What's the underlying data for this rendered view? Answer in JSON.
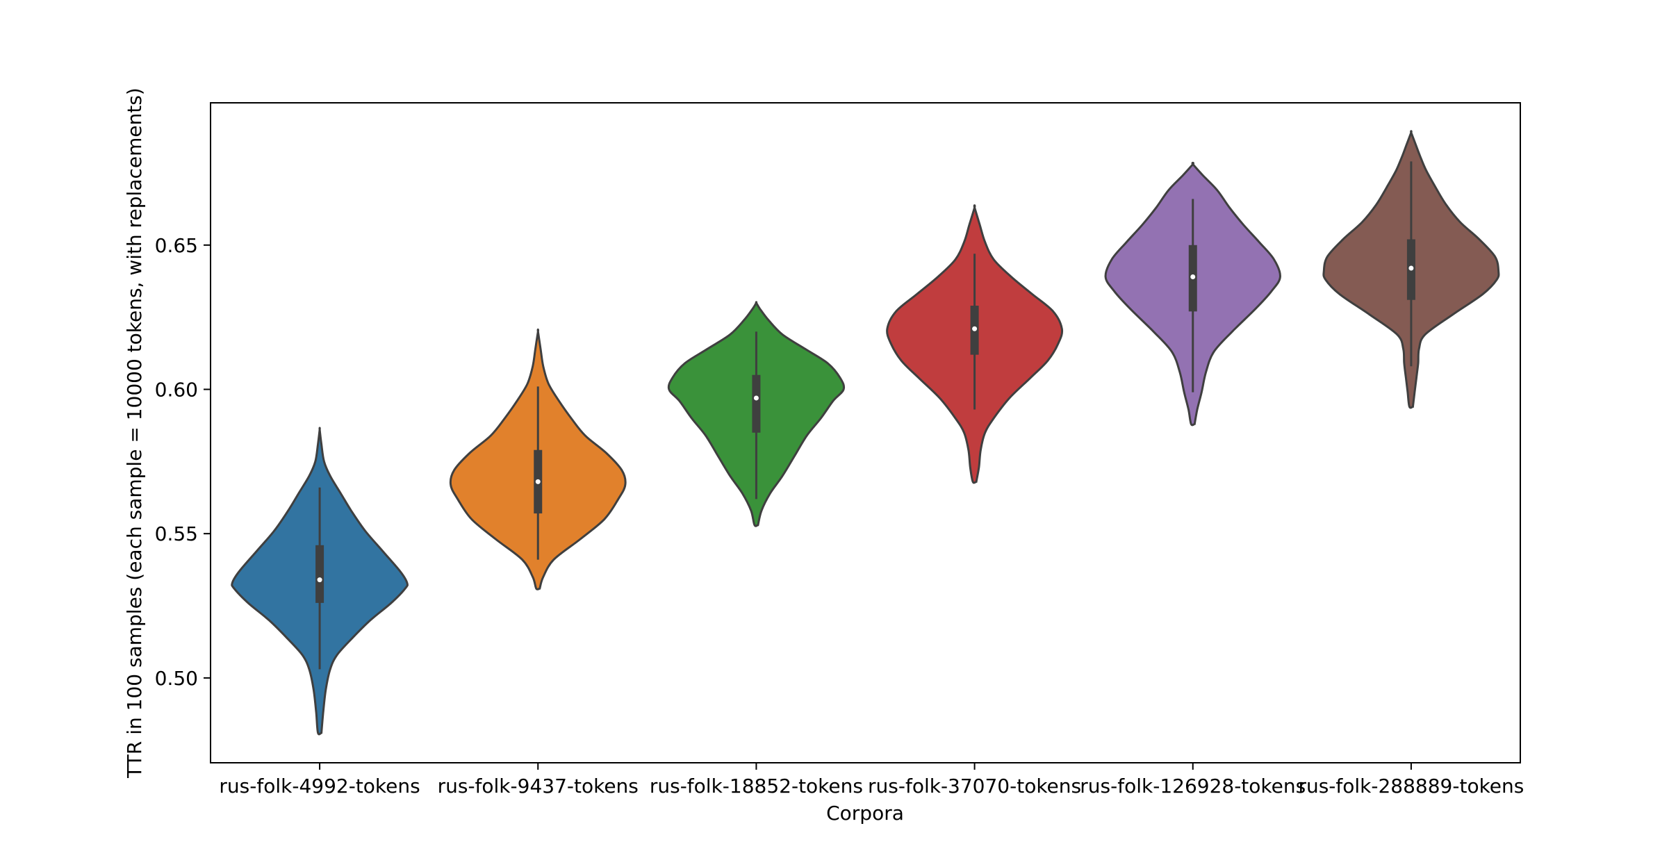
{
  "chart_data": {
    "type": "violin",
    "title": "",
    "xlabel": "Corpora",
    "ylabel": "TTR in 100 samples (each sample = 10000 tokens, with replacements)",
    "ylim": [
      0.4706,
      0.6993
    ],
    "yticks": [
      "0.50",
      "0.55",
      "0.60",
      "0.65"
    ],
    "ytick_values": [
      0.5,
      0.55,
      0.6,
      0.65
    ],
    "grid": false,
    "legend": "none",
    "categories": [
      "rus-folk-4992-tokens",
      "rus-folk-9437-tokens",
      "rus-folk-18852-tokens",
      "rus-folk-37070-tokens",
      "rus-folk-126928-tokens",
      "rus-folk-288889-tokens"
    ],
    "series": [
      {
        "category": "rus-folk-4992-tokens",
        "color": "#3274a1",
        "median": 0.534,
        "q1": 0.526,
        "q3": 0.546,
        "whisker_low": 0.503,
        "whisker_high": 0.566,
        "density": [
          [
            0.481,
            0.02
          ],
          [
            0.488,
            0.04
          ],
          [
            0.496,
            0.07
          ],
          [
            0.503,
            0.12
          ],
          [
            0.508,
            0.2
          ],
          [
            0.514,
            0.38
          ],
          [
            0.52,
            0.58
          ],
          [
            0.526,
            0.82
          ],
          [
            0.531,
            0.98
          ],
          [
            0.533,
            1.0
          ],
          [
            0.537,
            0.92
          ],
          [
            0.544,
            0.72
          ],
          [
            0.551,
            0.52
          ],
          [
            0.558,
            0.36
          ],
          [
            0.564,
            0.24
          ],
          [
            0.57,
            0.12
          ],
          [
            0.575,
            0.05
          ],
          [
            0.581,
            0.02
          ],
          [
            0.586,
            0.0
          ]
        ]
      },
      {
        "category": "rus-folk-9437-tokens",
        "color": "#e1812c",
        "median": 0.568,
        "q1": 0.557,
        "q3": 0.579,
        "whisker_low": 0.541,
        "whisker_high": 0.601,
        "density": [
          [
            0.531,
            0.02
          ],
          [
            0.535,
            0.06
          ],
          [
            0.541,
            0.18
          ],
          [
            0.548,
            0.48
          ],
          [
            0.555,
            0.76
          ],
          [
            0.562,
            0.92
          ],
          [
            0.567,
            1.0
          ],
          [
            0.572,
            0.96
          ],
          [
            0.578,
            0.78
          ],
          [
            0.584,
            0.54
          ],
          [
            0.59,
            0.38
          ],
          [
            0.596,
            0.24
          ],
          [
            0.602,
            0.12
          ],
          [
            0.608,
            0.06
          ],
          [
            0.614,
            0.03
          ],
          [
            0.62,
            0.0
          ]
        ]
      },
      {
        "category": "rus-folk-18852-tokens",
        "color": "#3a923a",
        "median": 0.597,
        "q1": 0.585,
        "q3": 0.605,
        "whisker_low": 0.562,
        "whisker_high": 0.62,
        "density": [
          [
            0.553,
            0.02
          ],
          [
            0.558,
            0.06
          ],
          [
            0.564,
            0.16
          ],
          [
            0.57,
            0.3
          ],
          [
            0.577,
            0.44
          ],
          [
            0.584,
            0.58
          ],
          [
            0.59,
            0.74
          ],
          [
            0.596,
            0.88
          ],
          [
            0.6,
            1.0
          ],
          [
            0.604,
            0.96
          ],
          [
            0.609,
            0.82
          ],
          [
            0.614,
            0.56
          ],
          [
            0.619,
            0.3
          ],
          [
            0.624,
            0.14
          ],
          [
            0.628,
            0.04
          ],
          [
            0.63,
            0.0
          ]
        ]
      },
      {
        "category": "rus-folk-37070-tokens",
        "color": "#c03d3e",
        "median": 0.621,
        "q1": 0.612,
        "q3": 0.629,
        "whisker_low": 0.593,
        "whisker_high": 0.647,
        "density": [
          [
            0.568,
            0.02
          ],
          [
            0.573,
            0.05
          ],
          [
            0.579,
            0.07
          ],
          [
            0.585,
            0.12
          ],
          [
            0.59,
            0.22
          ],
          [
            0.597,
            0.4
          ],
          [
            0.604,
            0.64
          ],
          [
            0.61,
            0.84
          ],
          [
            0.616,
            0.96
          ],
          [
            0.621,
            1.0
          ],
          [
            0.627,
            0.9
          ],
          [
            0.633,
            0.66
          ],
          [
            0.639,
            0.42
          ],
          [
            0.645,
            0.22
          ],
          [
            0.651,
            0.12
          ],
          [
            0.657,
            0.06
          ],
          [
            0.663,
            0.0
          ]
        ]
      },
      {
        "category": "rus-folk-126928-tokens",
        "color": "#9372b2",
        "median": 0.639,
        "q1": 0.627,
        "q3": 0.65,
        "whisker_low": 0.599,
        "whisker_high": 0.666,
        "density": [
          [
            0.588,
            0.02
          ],
          [
            0.593,
            0.05
          ],
          [
            0.599,
            0.1
          ],
          [
            0.606,
            0.15
          ],
          [
            0.613,
            0.24
          ],
          [
            0.62,
            0.45
          ],
          [
            0.628,
            0.72
          ],
          [
            0.634,
            0.9
          ],
          [
            0.639,
            1.0
          ],
          [
            0.645,
            0.93
          ],
          [
            0.651,
            0.76
          ],
          [
            0.657,
            0.58
          ],
          [
            0.663,
            0.42
          ],
          [
            0.669,
            0.28
          ],
          [
            0.674,
            0.12
          ],
          [
            0.678,
            0.0
          ]
        ]
      },
      {
        "category": "rus-folk-288889-tokens",
        "color": "#845b53",
        "median": 0.642,
        "q1": 0.631,
        "q3": 0.652,
        "whisker_low": 0.608,
        "whisker_high": 0.679,
        "density": [
          [
            0.594,
            0.02
          ],
          [
            0.599,
            0.04
          ],
          [
            0.604,
            0.06
          ],
          [
            0.609,
            0.08
          ],
          [
            0.614,
            0.09
          ],
          [
            0.619,
            0.16
          ],
          [
            0.626,
            0.48
          ],
          [
            0.633,
            0.82
          ],
          [
            0.638,
            0.98
          ],
          [
            0.641,
            1.0
          ],
          [
            0.646,
            0.96
          ],
          [
            0.652,
            0.78
          ],
          [
            0.658,
            0.56
          ],
          [
            0.664,
            0.4
          ],
          [
            0.67,
            0.28
          ],
          [
            0.676,
            0.17
          ],
          [
            0.681,
            0.1
          ],
          [
            0.685,
            0.05
          ],
          [
            0.689,
            0.0
          ]
        ]
      }
    ]
  }
}
